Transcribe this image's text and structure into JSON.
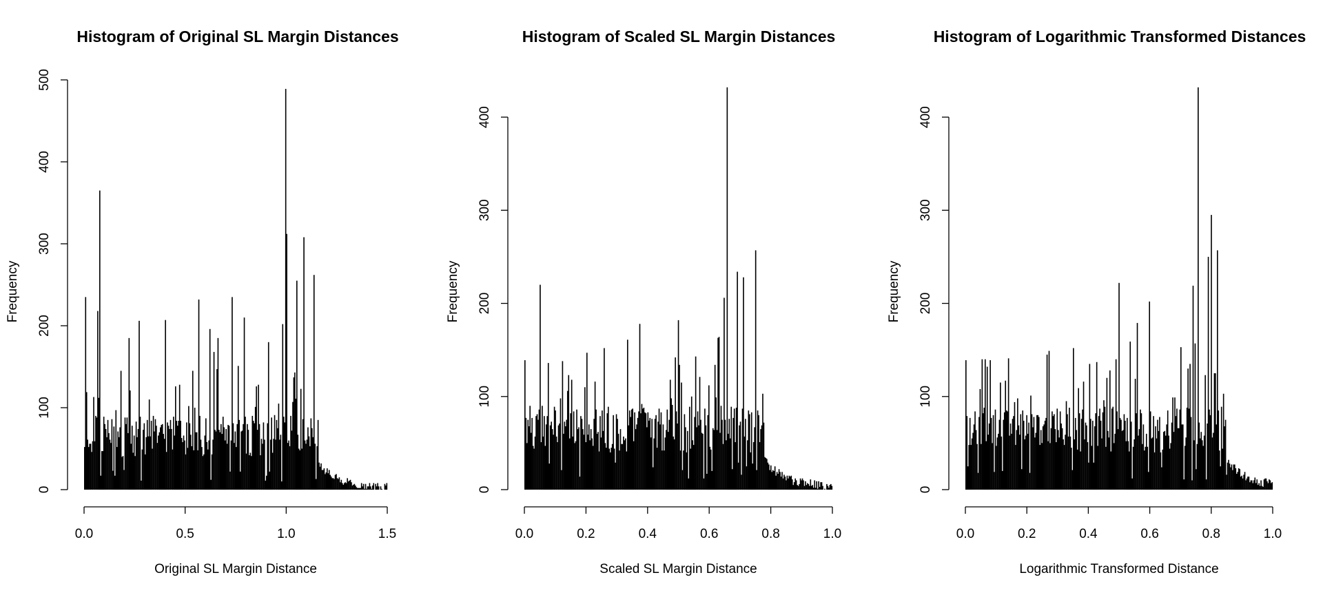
{
  "chart_data": [
    {
      "type": "bar",
      "title": "Histogram of Original SL Margin Distances",
      "xlabel": "Original SL Margin Distance",
      "ylabel": "Frequency",
      "xlim": [
        0,
        1.5
      ],
      "ylim": [
        0,
        500
      ],
      "xticks": [
        "0.0",
        "0.5",
        "1.0",
        "1.5"
      ],
      "yticks": [
        "0",
        "100",
        "200",
        "300",
        "400",
        "500"
      ],
      "bin_width": 0.005,
      "peaks": [
        {
          "x": 0.005,
          "value": 235
        },
        {
          "x": 0.075,
          "value": 365
        },
        {
          "x": 0.065,
          "value": 218
        },
        {
          "x": 0.22,
          "value": 185
        },
        {
          "x": 0.27,
          "value": 206
        },
        {
          "x": 0.4,
          "value": 207
        },
        {
          "x": 0.57,
          "value": 232
        },
        {
          "x": 0.62,
          "value": 196
        },
        {
          "x": 0.66,
          "value": 185
        },
        {
          "x": 0.73,
          "value": 235
        },
        {
          "x": 0.79,
          "value": 210
        },
        {
          "x": 0.91,
          "value": 180
        },
        {
          "x": 0.98,
          "value": 202
        },
        {
          "x": 0.995,
          "value": 489
        },
        {
          "x": 1.005,
          "value": 312
        },
        {
          "x": 1.055,
          "value": 255
        },
        {
          "x": 1.085,
          "value": 308
        },
        {
          "x": 1.135,
          "value": 262
        },
        {
          "x": 1.16,
          "value": 85
        }
      ]
    },
    {
      "type": "bar",
      "title": "Histogram of Scaled SL Margin Distances",
      "xlabel": "Scaled SL Margin Distance",
      "ylabel": "Frequency",
      "xlim": [
        0,
        1
      ],
      "ylim": [
        0,
        440
      ],
      "xticks": [
        "0.0",
        "0.2",
        "0.4",
        "0.6",
        "0.8",
        "1.0"
      ],
      "yticks": [
        "0",
        "100",
        "200",
        "300",
        "400"
      ],
      "bin_width": 0.0033,
      "peaks": [
        {
          "x": 0.002,
          "value": 139
        },
        {
          "x": 0.05,
          "value": 220
        },
        {
          "x": 0.26,
          "value": 152
        },
        {
          "x": 0.335,
          "value": 161
        },
        {
          "x": 0.375,
          "value": 178
        },
        {
          "x": 0.5,
          "value": 182
        },
        {
          "x": 0.62,
          "value": 134
        },
        {
          "x": 0.65,
          "value": 206
        },
        {
          "x": 0.657,
          "value": 432
        },
        {
          "x": 0.69,
          "value": 234
        },
        {
          "x": 0.71,
          "value": 228
        },
        {
          "x": 0.75,
          "value": 257
        },
        {
          "x": 0.775,
          "value": 103
        }
      ]
    },
    {
      "type": "bar",
      "title": "Histogram of Logarithmic Transformed Distances",
      "xlabel": "Logarithmic Transformed Distance",
      "ylabel": "Frequency",
      "xlim": [
        0,
        1
      ],
      "ylim": [
        0,
        440
      ],
      "xticks": [
        "0.0",
        "0.2",
        "0.4",
        "0.6",
        "0.8",
        "1.0"
      ],
      "yticks": [
        "0",
        "100",
        "200",
        "300",
        "400"
      ],
      "bin_width": 0.0033,
      "peaks": [
        {
          "x": 0.002,
          "value": 139
        },
        {
          "x": 0.08,
          "value": 139
        },
        {
          "x": 0.265,
          "value": 145
        },
        {
          "x": 0.5,
          "value": 222
        },
        {
          "x": 0.56,
          "value": 179
        },
        {
          "x": 0.6,
          "value": 202
        },
        {
          "x": 0.7,
          "value": 153
        },
        {
          "x": 0.74,
          "value": 219
        },
        {
          "x": 0.757,
          "value": 432
        },
        {
          "x": 0.79,
          "value": 250
        },
        {
          "x": 0.8,
          "value": 295
        },
        {
          "x": 0.82,
          "value": 257
        },
        {
          "x": 0.84,
          "value": 103
        }
      ]
    }
  ]
}
